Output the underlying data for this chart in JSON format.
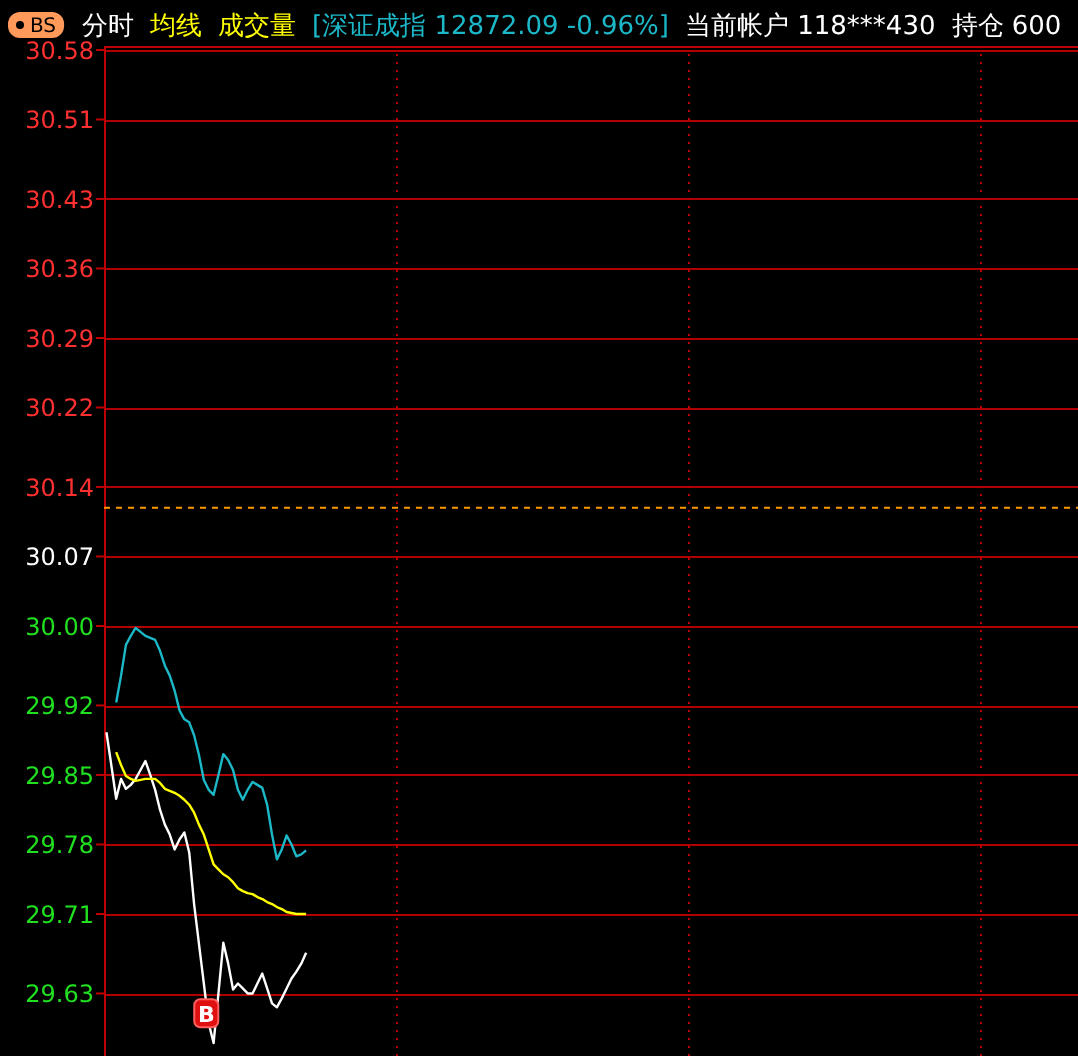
{
  "chart_data": {
    "type": "line",
    "categories": [
      null,
      null,
      null,
      null,
      null,
      null,
      null,
      null,
      null,
      null,
      null,
      null,
      null,
      null,
      null,
      null,
      null,
      null,
      null,
      null,
      null,
      null,
      null,
      null,
      null,
      null,
      null,
      null,
      null,
      null,
      null,
      null,
      null,
      null,
      null,
      null,
      null,
      null,
      null,
      null,
      null,
      null,
      null,
      null,
      null,
      null,
      null,
      null,
      null,
      null,
      null,
      null,
      null,
      null,
      null,
      null,
      null,
      null,
      null,
      null,
      null,
      null,
      null,
      null,
      null,
      null,
      null,
      null,
      null,
      null,
      null,
      null,
      null,
      null,
      null,
      null,
      null,
      null,
      null,
      null,
      null,
      null,
      null,
      null,
      null,
      null,
      null,
      null,
      null,
      null,
      null,
      null,
      null,
      null,
      null,
      null,
      null,
      null,
      null,
      null,
      null,
      null,
      null,
      null,
      null,
      null,
      null,
      null,
      null,
      null,
      null,
      null,
      null,
      null,
      null,
      null,
      null,
      null,
      null,
      null,
      null,
      null,
      null,
      null,
      null,
      null,
      null,
      null,
      null,
      null,
      null,
      null,
      null,
      null,
      null,
      null,
      null,
      null,
      null,
      null,
      null,
      null,
      null,
      null,
      null,
      null,
      null,
      null,
      null,
      null,
      null,
      null,
      null,
      null,
      null,
      null,
      null,
      null,
      null,
      null,
      null,
      null,
      null,
      null,
      null,
      null,
      null,
      null,
      null,
      null,
      null,
      null,
      null,
      null,
      null,
      null,
      null,
      null,
      null,
      null,
      null,
      null,
      null,
      null,
      null,
      null,
      null,
      null,
      null,
      null,
      null,
      null,
      null,
      null,
      null,
      null,
      null,
      null,
      null,
      null
    ],
    "ylim": [
      29.567,
      30.584
    ],
    "yticks": [
      30.58,
      30.51,
      30.43,
      30.36,
      30.29,
      30.22,
      30.14,
      30.07,
      {
        "value": 30.0,
        "label": "30.00"
      },
      29.92,
      29.85,
      29.78,
      29.71,
      29.63
    ],
    "tick_labels": "y",
    "grid": true,
    "legend": "top left",
    "marker": "none",
    "line_style": "solid",
    "ref_lines": [
      {
        "axis": "y",
        "value": 30.119,
        "color": "#ff9900",
        "line_style": "dashed"
      }
    ],
    "series": [
      {
        "name": "分时",
        "color": "#ffffff",
        "values": [
          29.893,
          29.86,
          29.826,
          29.846,
          29.836,
          29.84,
          29.846,
          29.855,
          29.864,
          29.85,
          29.835,
          29.815,
          29.8,
          29.79,
          29.775,
          29.785,
          29.792,
          29.772,
          29.72,
          29.68,
          29.64,
          29.6,
          29.58,
          29.63,
          29.681,
          29.66,
          29.634,
          29.64,
          29.635,
          29.63,
          29.63,
          29.64,
          29.65,
          29.635,
          29.62,
          29.616,
          29.625,
          29.635,
          29.645,
          29.652,
          29.66,
          29.671,
          null,
          null,
          null,
          null,
          null,
          null,
          null,
          null,
          null,
          null,
          null,
          null,
          null,
          null,
          null,
          null,
          null,
          null,
          null,
          null,
          null,
          null,
          null,
          null,
          null,
          null,
          null,
          null,
          null,
          null,
          null,
          null,
          null,
          null,
          null,
          null,
          null,
          null,
          null,
          null,
          null,
          null,
          null,
          null,
          null,
          null,
          null,
          null,
          null,
          null,
          null,
          null,
          null,
          null,
          null,
          null,
          null,
          null,
          null,
          null,
          null,
          null,
          null,
          null,
          null,
          null,
          null,
          null,
          null,
          null,
          null,
          null,
          null,
          null,
          null,
          null,
          null,
          null,
          null,
          null,
          null,
          null,
          null,
          null,
          null,
          null,
          null,
          null,
          null,
          null,
          null,
          null,
          null,
          null,
          null,
          null,
          null,
          null,
          null,
          null,
          null,
          null,
          null,
          null,
          null,
          null,
          null,
          null,
          null,
          null,
          null,
          null,
          null,
          null,
          null,
          null,
          null,
          null,
          null,
          null,
          null,
          null,
          null,
          null,
          null,
          null,
          null,
          null,
          null,
          null,
          null,
          null,
          null,
          null,
          null,
          null,
          null,
          null,
          null,
          null,
          null,
          null,
          null,
          null,
          null,
          null,
          null,
          null,
          null,
          null,
          null,
          null,
          null,
          null,
          null,
          null,
          null,
          null
        ]
      },
      {
        "name": "均线",
        "color": "#ffff00",
        "values": [
          null,
          null,
          29.873,
          29.86,
          29.849,
          29.846,
          29.844,
          29.845,
          29.846,
          29.846,
          29.846,
          29.842,
          29.836,
          29.834,
          29.832,
          29.829,
          29.825,
          29.82,
          29.812,
          29.8,
          29.79,
          29.775,
          29.76,
          29.755,
          29.75,
          29.747,
          29.742,
          29.736,
          29.733,
          29.731,
          29.73,
          29.727,
          29.725,
          29.722,
          29.72,
          29.717,
          29.715,
          29.712,
          29.711,
          29.71,
          29.71,
          29.71,
          null,
          null,
          null,
          null,
          null,
          null,
          null,
          null,
          null,
          null,
          null,
          null,
          null,
          null,
          null,
          null,
          null,
          null,
          null,
          null,
          null,
          null,
          null,
          null,
          null,
          null,
          null,
          null,
          null,
          null,
          null,
          null,
          null,
          null,
          null,
          null,
          null,
          null,
          null,
          null,
          null,
          null,
          null,
          null,
          null,
          null,
          null,
          null,
          null,
          null,
          null,
          null,
          null,
          null,
          null,
          null,
          null,
          null,
          null,
          null,
          null,
          null,
          null,
          null,
          null,
          null,
          null,
          null,
          null,
          null,
          null,
          null,
          null,
          null,
          null,
          null,
          null,
          null,
          null,
          null,
          null,
          null,
          null,
          null,
          null,
          null,
          null,
          null,
          null,
          null,
          null,
          null,
          null,
          null,
          null,
          null,
          null,
          null,
          null,
          null,
          null,
          null,
          null,
          null,
          null,
          null,
          null,
          null,
          null,
          null,
          null,
          null,
          null,
          null,
          null,
          null,
          null,
          null,
          null,
          null,
          null,
          null,
          null,
          null,
          null,
          null,
          null,
          null,
          null,
          null,
          null,
          null,
          null,
          null,
          null,
          null,
          null,
          null,
          null,
          null,
          null,
          null,
          null,
          null,
          null,
          null,
          null,
          null,
          null,
          null,
          null,
          null,
          null,
          null,
          null,
          null,
          null,
          null
        ]
      },
      {
        "name": "[深证成指 12872.09 -0.96%]",
        "color": "#1cb8c8",
        "values": [
          null,
          null,
          29.923,
          29.95,
          29.981,
          29.99,
          29.998,
          29.994,
          29.99,
          29.988,
          29.986,
          29.975,
          29.96,
          29.95,
          29.935,
          29.915,
          29.906,
          29.903,
          29.89,
          29.87,
          29.845,
          29.835,
          29.83,
          29.85,
          29.871,
          29.865,
          29.855,
          29.835,
          29.825,
          29.835,
          29.843,
          29.84,
          29.837,
          29.82,
          29.79,
          29.765,
          29.775,
          29.789,
          29.78,
          29.768,
          29.77,
          29.774,
          null,
          null,
          null,
          null,
          null,
          null,
          null,
          null,
          null,
          null,
          null,
          null,
          null,
          null,
          null,
          null,
          null,
          null,
          null,
          null,
          null,
          null,
          null,
          null,
          null,
          null,
          null,
          null,
          null,
          null,
          null,
          null,
          null,
          null,
          null,
          null,
          null,
          null,
          null,
          null,
          null,
          null,
          null,
          null,
          null,
          null,
          null,
          null,
          null,
          null,
          null,
          null,
          null,
          null,
          null,
          null,
          null,
          null,
          null,
          null,
          null,
          null,
          null,
          null,
          null,
          null,
          null,
          null,
          null,
          null,
          null,
          null,
          null,
          null,
          null,
          null,
          null,
          null,
          null,
          null,
          null,
          null,
          null,
          null,
          null,
          null,
          null,
          null,
          null,
          null,
          null,
          null,
          null,
          null,
          null,
          null,
          null,
          null,
          null,
          null,
          null,
          null,
          null,
          null,
          null,
          null,
          null,
          null,
          null,
          null,
          null,
          null,
          null,
          null,
          null,
          null,
          null,
          null,
          null,
          null,
          null,
          null,
          null,
          null,
          null,
          null,
          null,
          null,
          null,
          null,
          null,
          null,
          null,
          null,
          null,
          null,
          null,
          null,
          null,
          null,
          null,
          null,
          null,
          null,
          null,
          null,
          null,
          null,
          null,
          null,
          null,
          null,
          null,
          null,
          null,
          null,
          null,
          null
        ]
      }
    ],
    "annotations": [
      "成交量",
      "当前帐户 118***430",
      "持仓 600",
      "BS",
      {
        "text": "B",
        "y": 29.61
      }
    ]
  }
}
